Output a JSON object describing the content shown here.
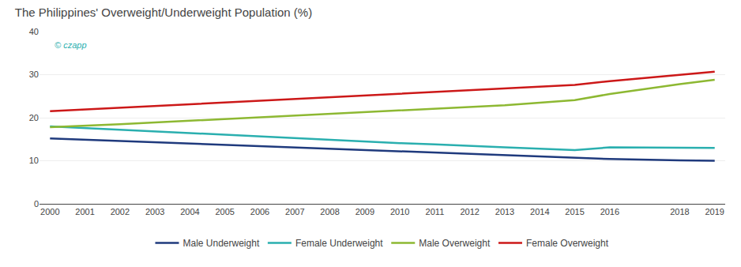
{
  "chart_data": {
    "type": "line",
    "title": "The Philippines' Overweight/Underweight Population (%)",
    "x": [
      2000,
      2001,
      2002,
      2003,
      2004,
      2005,
      2006,
      2007,
      2008,
      2009,
      2010,
      2011,
      2012,
      2013,
      2014,
      2015,
      2016,
      2018,
      2019
    ],
    "series": [
      {
        "name": "Male Underweight",
        "color": "#1f3a7d",
        "values": [
          15.2,
          14.9,
          14.6,
          14.3,
          14.0,
          13.7,
          13.4,
          13.1,
          12.8,
          12.5,
          12.2,
          11.9,
          11.6,
          11.3,
          11.0,
          10.7,
          10.4,
          10.1,
          10.0
        ]
      },
      {
        "name": "Female Underweight",
        "color": "#2aafaf",
        "values": [
          18.0,
          17.6,
          17.2,
          16.8,
          16.5,
          16.1,
          15.7,
          15.3,
          14.9,
          14.5,
          14.1,
          13.8,
          13.4,
          13.1,
          12.8,
          12.5,
          13.1,
          13.0,
          13.0
        ]
      },
      {
        "name": "Male Overweight",
        "color": "#8db832",
        "values": [
          17.8,
          18.1,
          18.5,
          18.9,
          19.3,
          19.7,
          20.1,
          20.5,
          20.9,
          21.3,
          21.7,
          22.1,
          22.5,
          22.9,
          23.5,
          24.1,
          25.5,
          27.8,
          28.8
        ]
      },
      {
        "name": "Female Overweight",
        "color": "#cc1818",
        "values": [
          21.5,
          21.9,
          22.3,
          22.7,
          23.1,
          23.5,
          23.9,
          24.3,
          24.7,
          25.1,
          25.5,
          25.9,
          26.3,
          26.7,
          27.1,
          27.6,
          28.5,
          30.0,
          30.7
        ]
      }
    ],
    "xlim": [
      1999.7,
      2019.3
    ],
    "xticks": [
      2000,
      2001,
      2002,
      2003,
      2004,
      2005,
      2006,
      2007,
      2008,
      2009,
      2010,
      2011,
      2012,
      2013,
      2014,
      2015,
      2016,
      2018,
      2019
    ],
    "ylim": [
      0,
      40
    ],
    "yticks": [
      0,
      10,
      20,
      30,
      40
    ],
    "grid": true,
    "legend": "bottom",
    "annotations": [
      "© czapp"
    ]
  }
}
